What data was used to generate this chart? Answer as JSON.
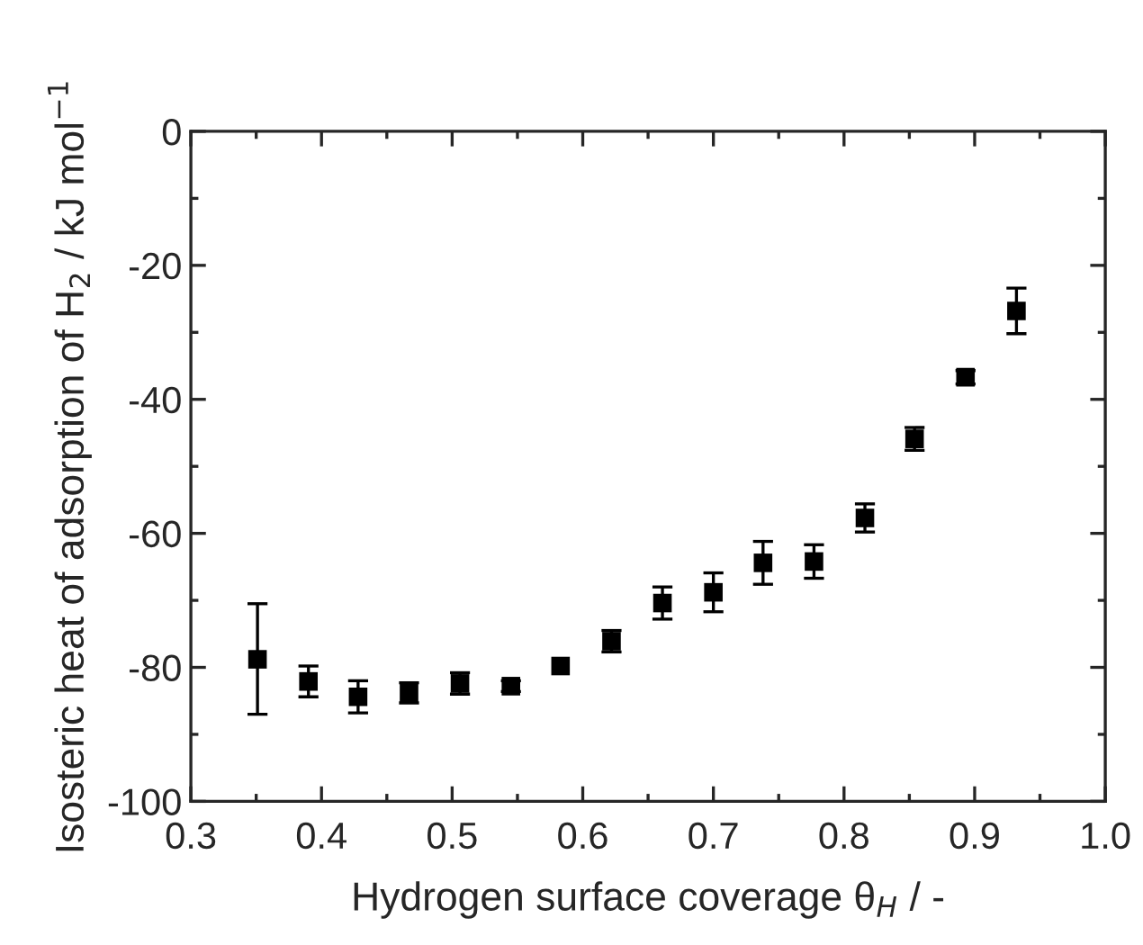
{
  "chart_data": {
    "type": "scatter",
    "xlabel": "Hydrogen surface coverage θ$_{H}$ / -",
    "ylabel": "Isosteric heat of adsorption of H$_{2}$ / kJ mol$^{−1}$",
    "x": [
      0.351,
      0.39,
      0.428,
      0.467,
      0.506,
      0.545,
      0.583,
      0.622,
      0.661,
      0.7,
      0.738,
      0.777,
      0.816,
      0.854,
      0.893,
      0.932
    ],
    "values": [
      -78.8,
      -82.1,
      -84.4,
      -83.8,
      -82.4,
      -82.8,
      -79.8,
      -76.1,
      -70.4,
      -68.8,
      -64.4,
      -64.2,
      -57.7,
      -45.9,
      -36.7,
      -26.8
    ],
    "errors": [
      [
        -87,
        -70.5
      ],
      2.3,
      2.4,
      1.5,
      1.6,
      0.8,
      null,
      1.6,
      2.4,
      2.9,
      3.2,
      2.5,
      2.1,
      1.7,
      1.0,
      3.4
    ],
    "color": "#000000",
    "marker": "square",
    "xlim": [
      0.3,
      1.0
    ],
    "xticks": [
      0.3,
      0.4,
      0.5,
      0.6,
      0.7,
      0.8,
      0.9,
      {
        "value": 1.0,
        "label": "1.0"
      }
    ],
    "ylim": [
      -100,
      0
    ],
    "yticks": [
      -100,
      -80,
      -60,
      -40,
      -20,
      0
    ],
    "grid": false,
    "legend": false
  }
}
